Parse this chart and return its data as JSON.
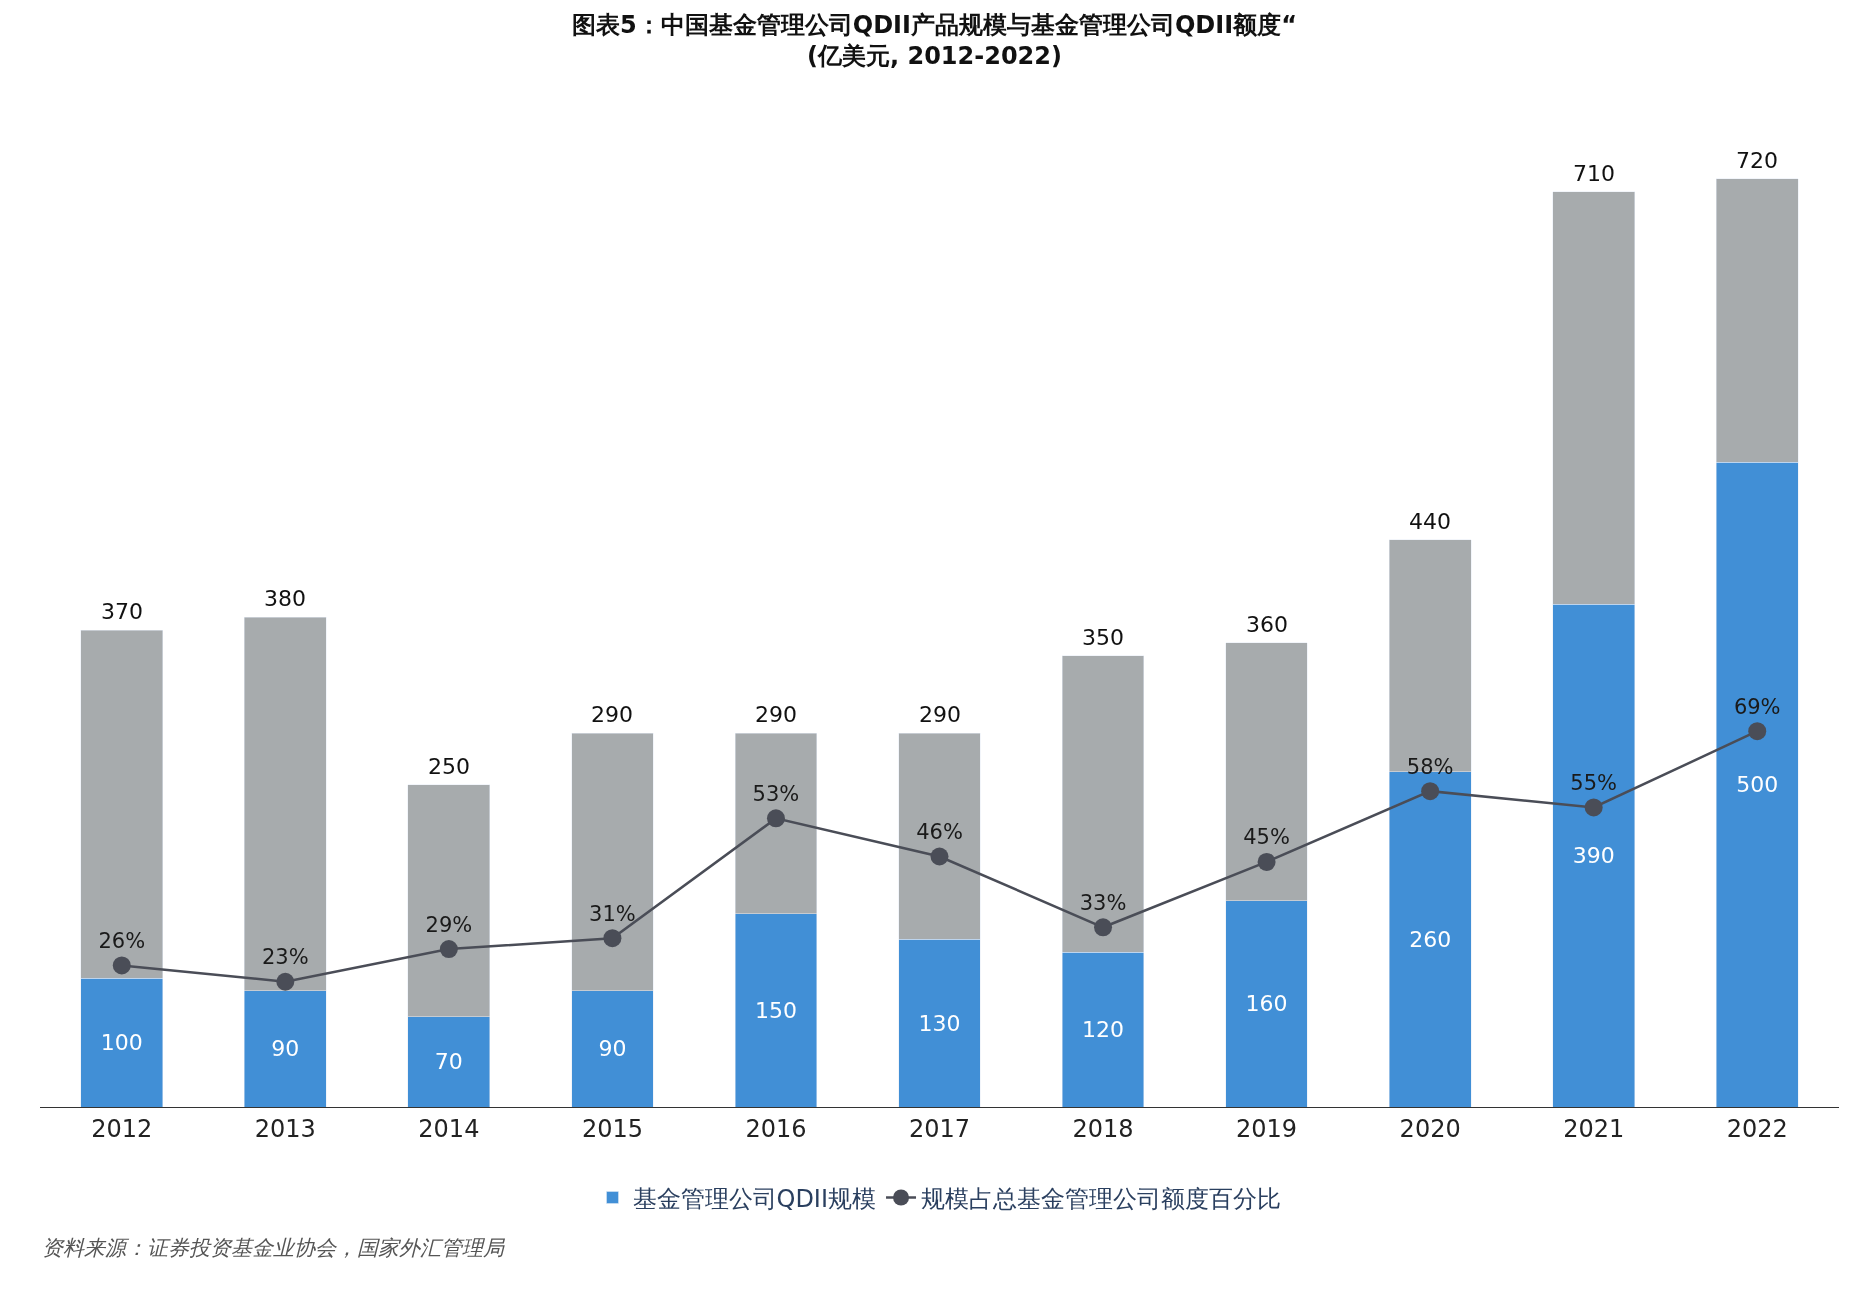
{
  "chart_data": {
    "type": "bar",
    "title": "图表5：中国基金管理公司QDII产品规模与基金管理公司QDII额度“",
    "subtitle": "(亿美元, 2012-2022)",
    "categories": [
      "2012",
      "2013",
      "2014",
      "2015",
      "2016",
      "2017",
      "2018",
      "2019",
      "2020",
      "2021",
      "2022"
    ],
    "stacked": true,
    "series": [
      {
        "name": "基金管理公司QDII规模",
        "color": "#418fd6",
        "values": [
          100,
          90,
          70,
          90,
          150,
          130,
          120,
          160,
          260,
          390,
          500
        ],
        "value_labels": [
          "100",
          "90",
          "70",
          "90",
          "150",
          "130",
          "120",
          "160",
          "260",
          "390",
          "500"
        ]
      },
      {
        "color": "#a7abad",
        "values": [
          270,
          290,
          180,
          200,
          140,
          160,
          230,
          200,
          180,
          320,
          220
        ]
      },
      {
        "type": "line",
        "axis": "y2",
        "name": "规模占总基金管理公司额度百分比",
        "color": "#4a4d57",
        "values": [
          26,
          23,
          29,
          31,
          53,
          46,
          33,
          45,
          58,
          55,
          69
        ],
        "value_labels": [
          "26%",
          "23%",
          "29%",
          "31%",
          "53%",
          "46%",
          "33%",
          "45%",
          "58%",
          "55%",
          "69%"
        ]
      }
    ],
    "totals": [
      "370",
      "380",
      "250",
      "290",
      "290",
      "290",
      "350",
      "360",
      "440",
      "710",
      "720"
    ],
    "marker": "circle",
    "line_style": "solid",
    "legend": "bottom",
    "tick_labels": "x",
    "annotations": [
      "资料来源：证券投资基金业协会，国家外汇管理局"
    ]
  }
}
